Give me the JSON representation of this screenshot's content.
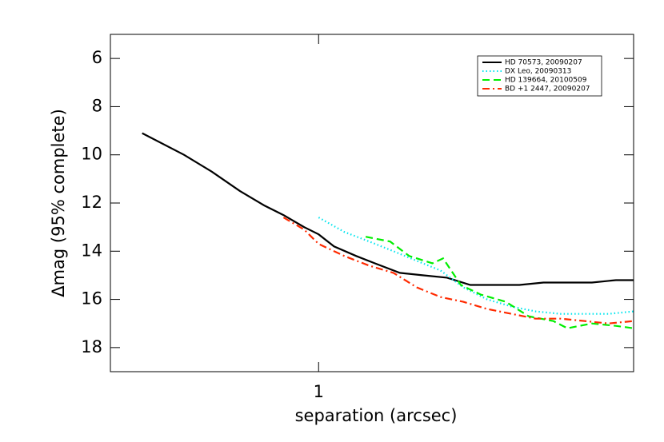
{
  "chart_data": {
    "type": "line",
    "x_label": "separation (arcsec)",
    "y_label": "Δmag (95% complete)",
    "xlim": [
      0.4,
      4
    ],
    "xlog": true,
    "xticks": [
      1
    ],
    "ylim": [
      19,
      5
    ],
    "yticks": [
      6,
      8,
      10,
      12,
      14,
      16,
      18
    ],
    "legend": "upper right",
    "series": [
      {
        "name": "HD 70573, 20090207",
        "color": "#000000",
        "dash": "solid",
        "x": [
          0.46,
          0.553,
          0.625,
          0.707,
          0.787,
          0.857,
          0.938,
          1.0,
          1.07,
          1.18,
          1.28,
          1.43,
          1.58,
          1.76,
          1.95,
          2.18,
          2.42,
          2.69,
          2.99,
          3.33,
          3.7,
          4.0
        ],
        "values": [
          9.1,
          10.0,
          10.7,
          11.5,
          12.1,
          12.5,
          13.0,
          13.3,
          13.8,
          14.2,
          14.5,
          14.9,
          15.0,
          15.1,
          15.4,
          15.4,
          15.4,
          15.3,
          15.3,
          15.3,
          15.2,
          15.2
        ]
      },
      {
        "name": "DX Leo, 20090313",
        "color": "#00e5ee",
        "dash": "dotted",
        "x": [
          1.0,
          1.12,
          1.25,
          1.39,
          1.54,
          1.71,
          1.89,
          2.1,
          2.34,
          2.6,
          2.9,
          3.23,
          3.58,
          4.0
        ],
        "values": [
          12.6,
          13.2,
          13.6,
          14.0,
          14.4,
          14.8,
          15.5,
          16.0,
          16.3,
          16.5,
          16.6,
          16.6,
          16.6,
          16.5
        ]
      },
      {
        "name": "HD 139664, 20100509",
        "color": "#00ee00",
        "dash": "dashed",
        "x": [
          1.23,
          1.37,
          1.49,
          1.65,
          1.73,
          1.87,
          2.04,
          2.28,
          2.52,
          2.81,
          2.99,
          3.33,
          3.7,
          4.0
        ],
        "values": [
          13.4,
          13.6,
          14.2,
          14.5,
          14.3,
          15.4,
          15.8,
          16.1,
          16.7,
          16.9,
          17.2,
          17.0,
          17.1,
          17.2
        ]
      },
      {
        "name": "BD +1 2447, 20090207",
        "color": "#ff2a00",
        "dash": "dashdot",
        "x": [
          0.857,
          0.938,
          1.0,
          1.12,
          1.25,
          1.39,
          1.54,
          1.71,
          1.89,
          2.1,
          2.34,
          2.6,
          2.9,
          3.23,
          3.58,
          4.0
        ],
        "values": [
          12.6,
          13.1,
          13.7,
          14.2,
          14.6,
          14.9,
          15.5,
          15.9,
          16.1,
          16.4,
          16.6,
          16.8,
          16.8,
          16.9,
          17.0,
          16.9
        ]
      }
    ]
  }
}
